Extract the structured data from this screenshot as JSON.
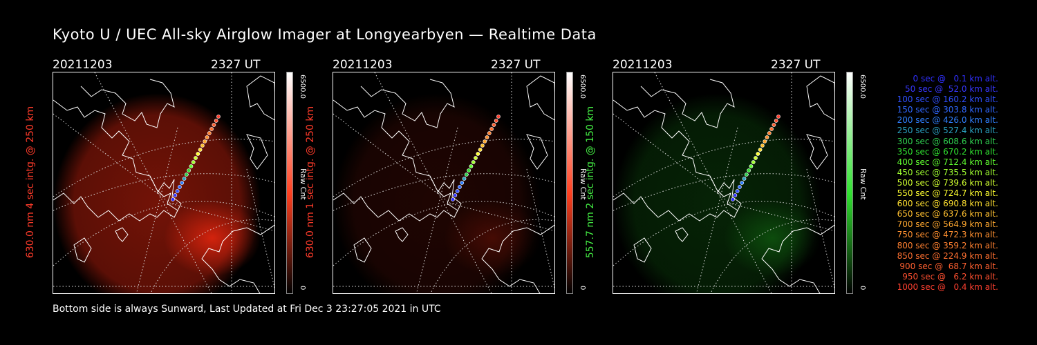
{
  "title": "Kyoto U / UEC All-sky Airglow Imager at Longyearbyen — Realtime Data",
  "footer": "Bottom side is always Sunward, Last Updated at Fri Dec  3 23:27:05 2021 in UTC",
  "panels": [
    {
      "date": "20211203",
      "time": "2327 UT",
      "ylabel": "630.0 nm 4 sec intg. @ 250 km",
      "label_color": "#ff3b2a",
      "cb_max": "6500.0",
      "cb_min": "0",
      "cb_unit": "Raw Cnt",
      "cb_color": "#ff4020",
      "glow_color": "#ff2a10",
      "glow": 0.45
    },
    {
      "date": "20211203",
      "time": "2327 UT",
      "ylabel": "630.0 nm 1 sec intg. @ 250 km",
      "label_color": "#ff3b2a",
      "cb_max": "6500.0",
      "cb_min": "0",
      "cb_unit": "Raw Cnt",
      "cb_color": "#ff4020",
      "glow_color": "#ff2a10",
      "glow": 0.12
    },
    {
      "date": "20211203",
      "time": "2327 UT",
      "ylabel": "557.7 nm 2 sec intg. @ 150 km",
      "label_color": "#44ee44",
      "cb_max": "6500.0",
      "cb_min": "0",
      "cb_unit": "Raw Cnt",
      "cb_color": "#30e030",
      "glow_color": "#20c020",
      "glow": 0.18
    }
  ],
  "legend": [
    {
      "text": "0 sec @   0.1 km alt.",
      "color": "#3030ff"
    },
    {
      "text": "50 sec @  52.0 km alt.",
      "color": "#3838ff"
    },
    {
      "text": "100 sec @ 160.2 km alt.",
      "color": "#3050ff"
    },
    {
      "text": "150 sec @ 303.8 km alt.",
      "color": "#3068ff"
    },
    {
      "text": "200 sec @ 426.0 km alt.",
      "color": "#3080ff"
    },
    {
      "text": "250 sec @ 527.4 km alt.",
      "color": "#2aa0c0"
    },
    {
      "text": "300 sec @ 608.6 km alt.",
      "color": "#30d050"
    },
    {
      "text": "350 sec @ 670.2 km alt.",
      "color": "#30e030"
    },
    {
      "text": "400 sec @ 712.4 km alt.",
      "color": "#60ff30"
    },
    {
      "text": "450 sec @ 735.5 km alt.",
      "color": "#a0ff30"
    },
    {
      "text": "500 sec @ 739.6 km alt.",
      "color": "#d0ff30"
    },
    {
      "text": "550 sec @ 724.7 km alt.",
      "color": "#ffff30"
    },
    {
      "text": "600 sec @ 690.8 km alt.",
      "color": "#ffe030"
    },
    {
      "text": "650 sec @ 637.6 km alt.",
      "color": "#ffc030"
    },
    {
      "text": "700 sec @ 564.9 km alt.",
      "color": "#ffa830"
    },
    {
      "text": "750 sec @ 472.3 km alt.",
      "color": "#ff9030"
    },
    {
      "text": "800 sec @ 359.2 km alt.",
      "color": "#ff8030"
    },
    {
      "text": "850 sec @ 224.9 km alt.",
      "color": "#ff7030"
    },
    {
      "text": "900 sec @  68.7 km alt.",
      "color": "#ff6030"
    },
    {
      "text": "950 sec @   6.2 km alt.",
      "color": "#ff5030"
    },
    {
      "text": "1000 sec @   0.4 km alt.",
      "color": "#ff4030"
    }
  ]
}
